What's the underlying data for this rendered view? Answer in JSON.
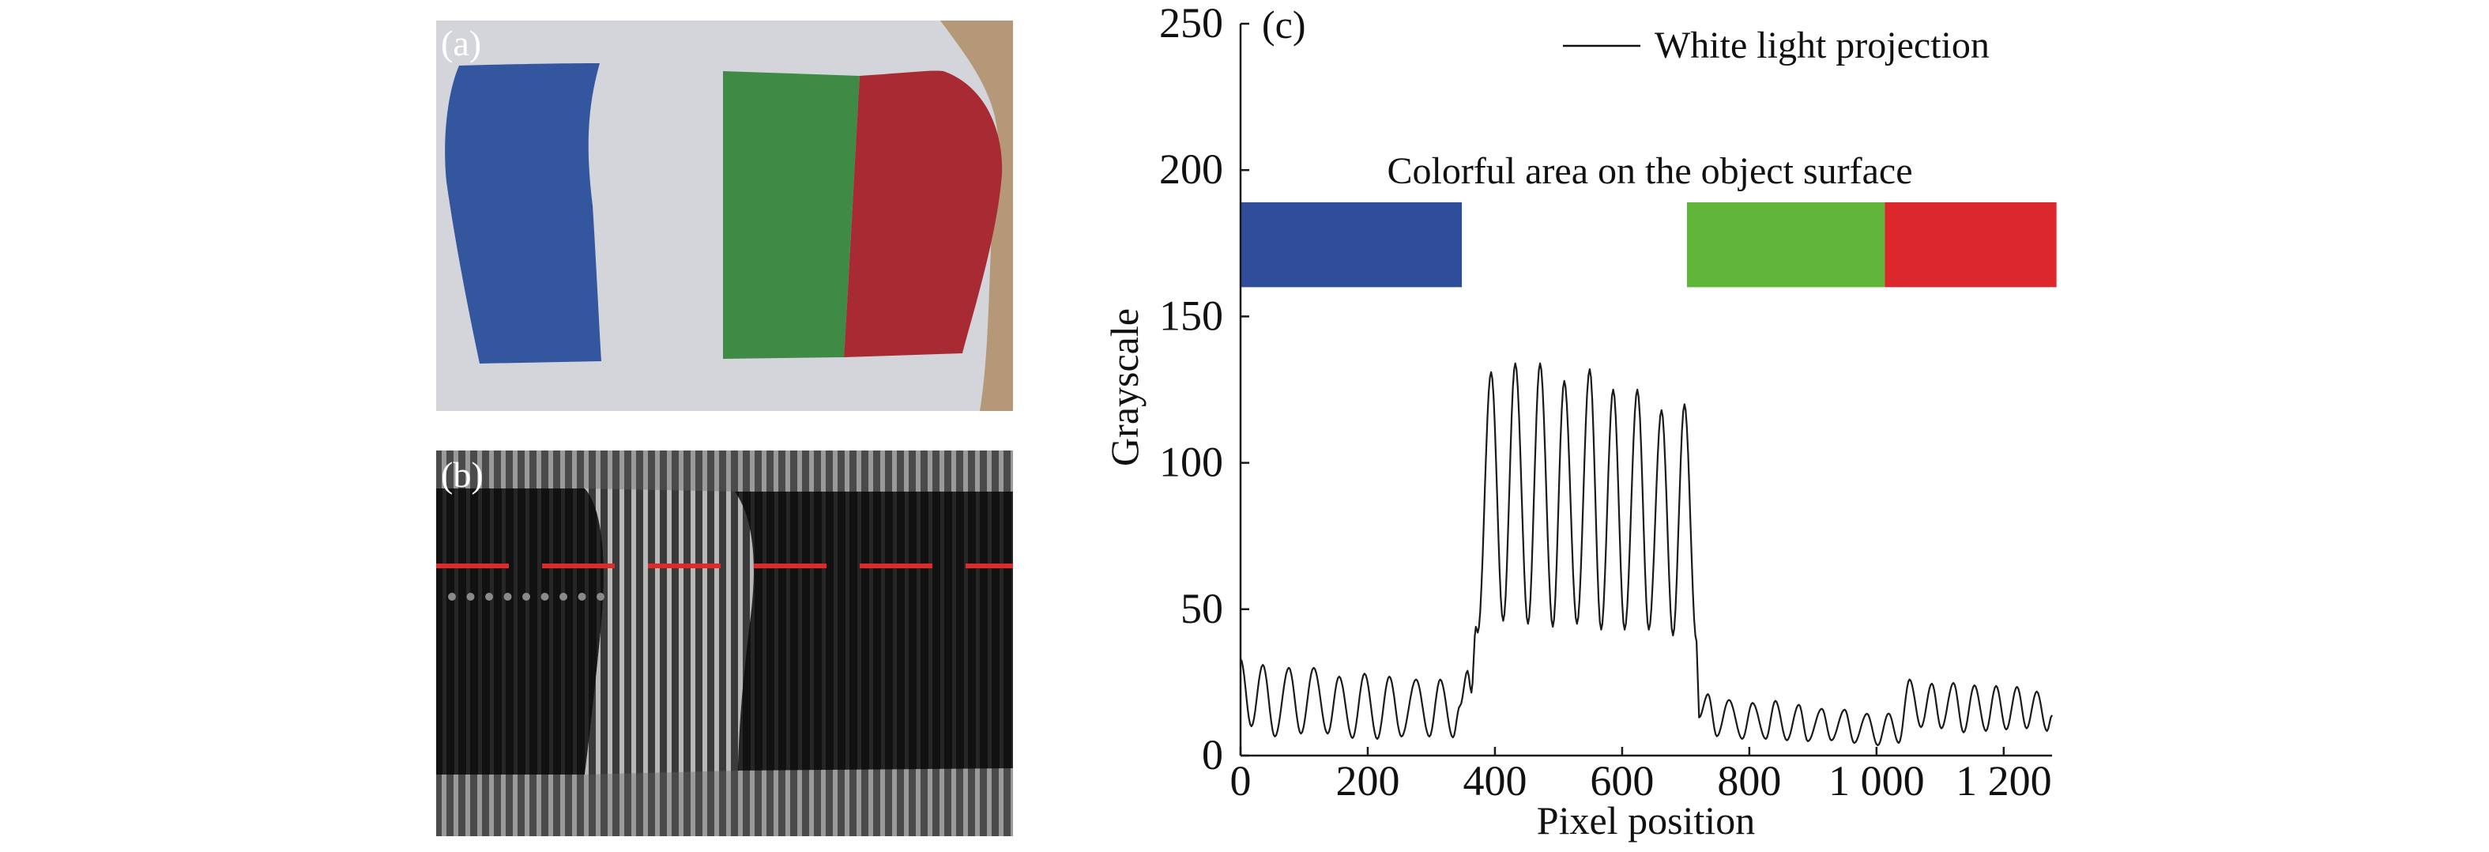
{
  "panels": {
    "a": {
      "label": "(a)"
    },
    "b": {
      "label": "(b)"
    },
    "c": {
      "label": "(c)"
    }
  },
  "photo_colors": {
    "blue": "#34569e",
    "green": "#3f8a45",
    "red": "#a82a33",
    "paper": "#d3d5db",
    "wood": "#b49877"
  },
  "fringe_colors": {
    "marker_line": "#e02a2a"
  },
  "chart_data": {
    "type": "line",
    "xlabel": "Pixel position",
    "ylabel": "Grayscale",
    "xlim": [
      0,
      1276
    ],
    "ylim": [
      0,
      250
    ],
    "x_ticks": [
      {
        "value": 0,
        "label": "0"
      },
      {
        "value": 200,
        "label": "200"
      },
      {
        "value": 400,
        "label": "400"
      },
      {
        "value": 600,
        "label": "600"
      },
      {
        "value": 800,
        "label": "800"
      },
      {
        "value": 1000,
        "label": "1 000"
      },
      {
        "value": 1200,
        "label": "1 200"
      }
    ],
    "y_ticks": [
      {
        "value": 0,
        "label": "0"
      },
      {
        "value": 50,
        "label": "50"
      },
      {
        "value": 100,
        "label": "100"
      },
      {
        "value": 150,
        "label": "150"
      },
      {
        "value": 200,
        "label": "200"
      },
      {
        "value": 250,
        "label": "250"
      }
    ],
    "grid": false,
    "legend": {
      "placement": "top-right",
      "entries": [
        "White light projection"
      ]
    },
    "annotation": "Colorful area on the object surface",
    "color_bands": [
      {
        "name": "blue",
        "x_range": [
          0,
          348
        ],
        "y_range": [
          160,
          189
        ],
        "color": "#304d9c"
      },
      {
        "name": "green",
        "x_range": [
          702,
          1013
        ],
        "y_range": [
          160,
          189
        ],
        "color": "#5fb638"
      },
      {
        "name": "red",
        "x_range": [
          1013,
          1283
        ],
        "y_range": [
          160,
          189
        ],
        "color": "#dc282c"
      }
    ],
    "series": [
      {
        "name": "White light projection",
        "color": "#1a1a1a",
        "x": [
          0,
          17,
          35,
          54,
          76,
          95,
          115,
          137,
          155,
          176,
          195,
          215,
          234,
          253,
          276,
          297,
          314,
          334,
          345,
          357,
          363,
          370,
          373,
          394,
          413,
          432,
          452,
          471,
          491,
          509,
          529,
          549,
          567,
          586,
          604,
          624,
          642,
          662,
          680,
          698,
          717,
          721,
          735,
          749,
          768,
          789,
          805,
          826,
          841,
          859,
          878,
          892,
          914,
          929,
          950,
          965,
          985,
          1002,
          1019,
          1035,
          1052,
          1070,
          1087,
          1102,
          1121,
          1137,
          1154,
          1172,
          1188,
          1204,
          1221,
          1236,
          1252,
          1268,
          1276
        ],
        "y": [
          33,
          10,
          31,
          6.5,
          30,
          7.5,
          30,
          7.5,
          27,
          6,
          28,
          5.7,
          27,
          6.5,
          26,
          6.5,
          26,
          6.2,
          17,
          29,
          21.5,
          44,
          42,
          131,
          46,
          134,
          45,
          134,
          44,
          128,
          45,
          132,
          43,
          125,
          43,
          125,
          43,
          118,
          41,
          120,
          39,
          13,
          21,
          6.6,
          19,
          5.7,
          18,
          5.7,
          18.7,
          5.2,
          17.4,
          4.9,
          16,
          5.2,
          15.7,
          4.3,
          14.3,
          3.5,
          14.4,
          4.3,
          26,
          9.7,
          24.6,
          9.3,
          24.8,
          7.9,
          24,
          8.4,
          23.8,
          8.9,
          23.5,
          9.3,
          21.9,
          8.4,
          13.8
        ]
      }
    ]
  }
}
